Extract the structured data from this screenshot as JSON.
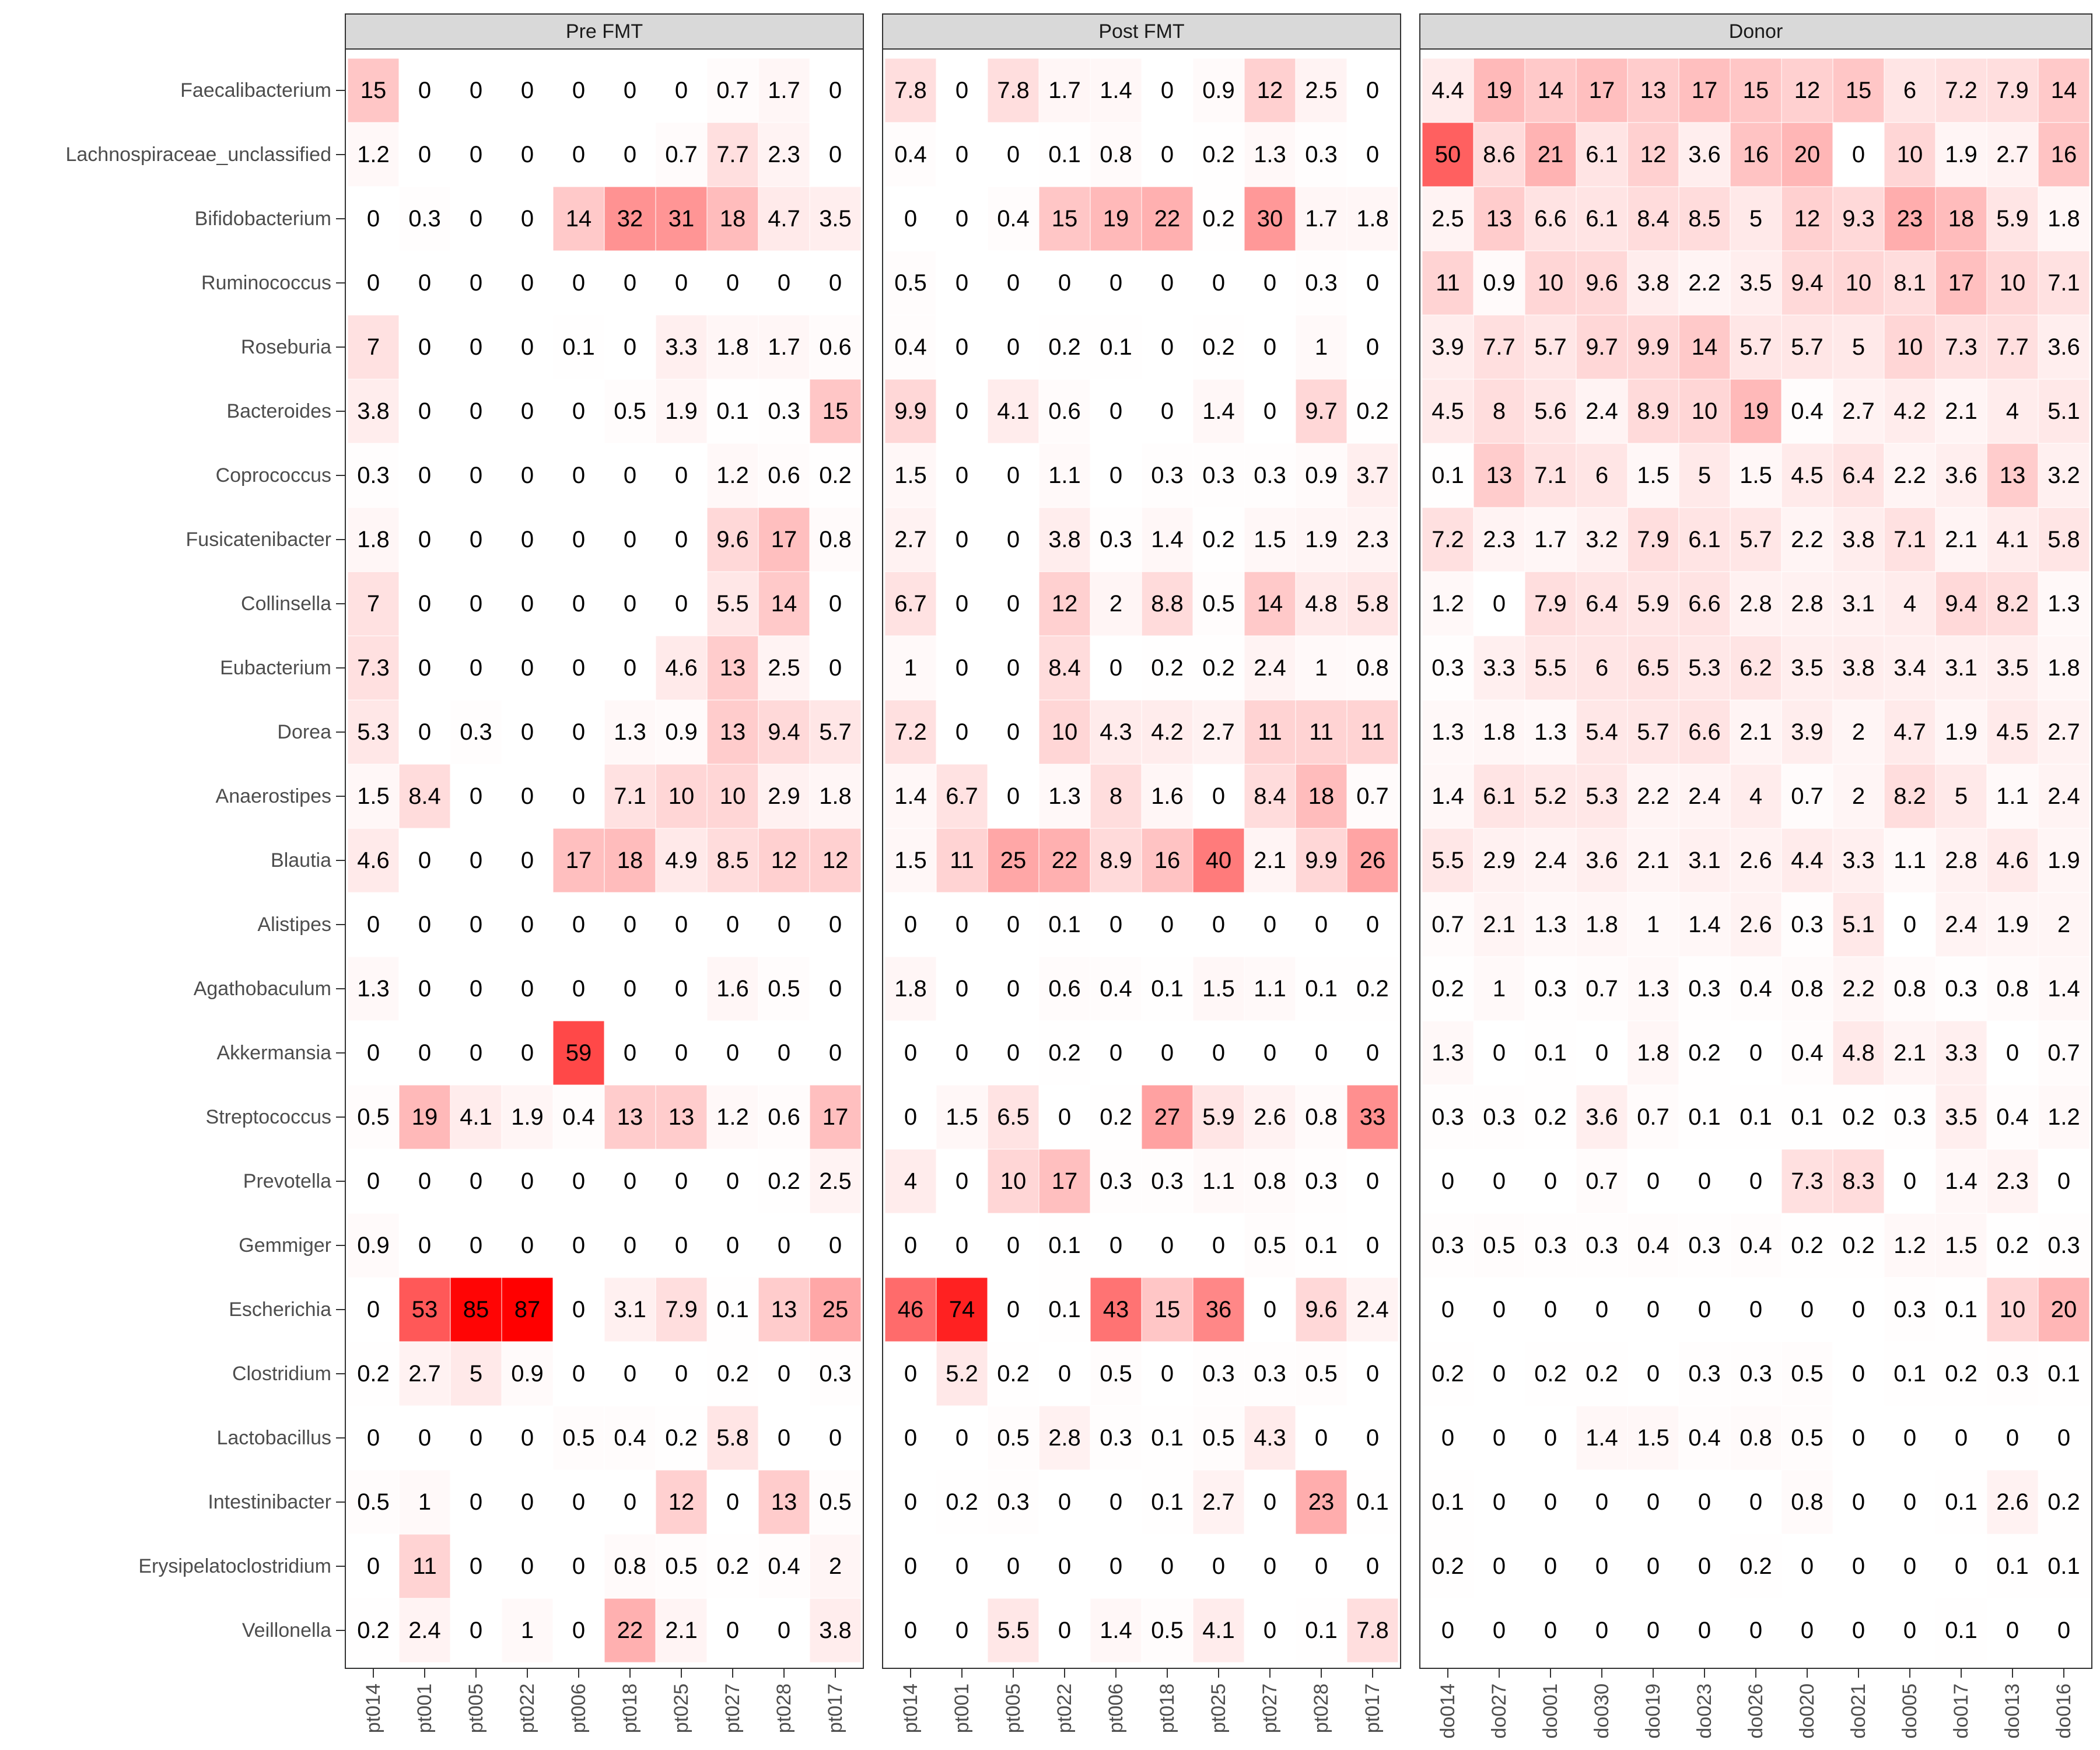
{
  "chart_data": {
    "type": "heatmap",
    "title": "",
    "xlabel": "",
    "ylabel": "",
    "color_low": "#ffffff",
    "color_high": "#ff0000",
    "value_max": 87,
    "rows": [
      "Faecalibacterium",
      "Lachnospiraceae_unclassified",
      "Bifidobacterium",
      "Ruminococcus",
      "Roseburia",
      "Bacteroides",
      "Coprococcus",
      "Fusicatenibacter",
      "Collinsella",
      "Eubacterium",
      "Dorea",
      "Anaerostipes",
      "Blautia",
      "Alistipes",
      "Agathobaculum",
      "Akkermansia",
      "Streptococcus",
      "Prevotella",
      "Gemmiger",
      "Escherichia",
      "Clostridium",
      "Lactobacillus",
      "Intestinibacter",
      "Erysipelatoclostridium",
      "Veillonella"
    ],
    "panels": [
      {
        "title": "Pre FMT",
        "columns": [
          "pt014",
          "pt001",
          "pt005",
          "pt022",
          "pt006",
          "pt018",
          "pt025",
          "pt027",
          "pt028",
          "pt017"
        ],
        "values": [
          [
            15,
            0,
            0,
            0,
            0,
            0,
            0,
            0.7,
            1.7,
            0
          ],
          [
            1.2,
            0,
            0,
            0,
            0,
            0,
            0.7,
            7.7,
            2.3,
            0
          ],
          [
            0,
            0.3,
            0,
            0,
            14,
            32,
            31,
            18,
            4.7,
            3.5
          ],
          [
            0,
            0,
            0,
            0,
            0,
            0,
            0,
            0,
            0,
            0
          ],
          [
            7,
            0,
            0,
            0,
            0.1,
            0,
            3.3,
            1.8,
            1.7,
            0.6
          ],
          [
            3.8,
            0,
            0,
            0,
            0,
            0.5,
            1.9,
            0.1,
            0.3,
            15
          ],
          [
            0.3,
            0,
            0,
            0,
            0,
            0,
            0,
            1.2,
            0.6,
            0.2
          ],
          [
            1.8,
            0,
            0,
            0,
            0,
            0,
            0,
            9.6,
            17,
            0.8
          ],
          [
            7,
            0,
            0,
            0,
            0,
            0,
            0,
            5.5,
            14,
            0
          ],
          [
            7.3,
            0,
            0,
            0,
            0,
            0,
            4.6,
            13,
            2.5,
            0
          ],
          [
            5.3,
            0,
            0.3,
            0,
            0,
            1.3,
            0.9,
            13,
            9.4,
            5.7
          ],
          [
            1.5,
            8.4,
            0,
            0,
            0,
            7.1,
            10,
            10,
            2.9,
            1.8
          ],
          [
            4.6,
            0,
            0,
            0,
            17,
            18,
            4.9,
            8.5,
            12,
            12
          ],
          [
            0,
            0,
            0,
            0,
            0,
            0,
            0,
            0,
            0,
            0
          ],
          [
            1.3,
            0,
            0,
            0,
            0,
            0,
            0,
            1.6,
            0.5,
            0
          ],
          [
            0,
            0,
            0,
            0,
            59,
            0,
            0,
            0,
            0,
            0
          ],
          [
            0.5,
            19,
            4.1,
            1.9,
            0.4,
            13,
            13,
            1.2,
            0.6,
            17
          ],
          [
            0,
            0,
            0,
            0,
            0,
            0,
            0,
            0,
            0.2,
            2.5
          ],
          [
            0.9,
            0,
            0,
            0,
            0,
            0,
            0,
            0,
            0,
            0
          ],
          [
            0,
            53,
            85,
            87,
            0,
            3.1,
            7.9,
            0.1,
            13,
            25
          ],
          [
            0.2,
            2.7,
            5,
            0.9,
            0,
            0,
            0,
            0.2,
            0,
            0.3
          ],
          [
            0,
            0,
            0,
            0,
            0.5,
            0.4,
            0.2,
            5.8,
            0,
            0
          ],
          [
            0.5,
            1,
            0,
            0,
            0,
            0,
            12,
            0,
            13,
            0.5
          ],
          [
            0,
            11,
            0,
            0,
            0,
            0.8,
            0.5,
            0.2,
            0.4,
            2
          ],
          [
            0.2,
            2.4,
            0,
            1,
            0,
            22,
            2.1,
            0,
            0,
            3.8
          ]
        ]
      },
      {
        "title": "Post FMT",
        "columns": [
          "pt014",
          "pt001",
          "pt005",
          "pt022",
          "pt006",
          "pt018",
          "pt025",
          "pt027",
          "pt028",
          "pt017"
        ],
        "values": [
          [
            7.8,
            0,
            7.8,
            1.7,
            1.4,
            0,
            0.9,
            12,
            2.5,
            0
          ],
          [
            0.4,
            0,
            0,
            0.1,
            0.8,
            0,
            0.2,
            1.3,
            0.3,
            0
          ],
          [
            0,
            0,
            0.4,
            15,
            19,
            22,
            0.2,
            30,
            1.7,
            1.8
          ],
          [
            0.5,
            0,
            0,
            0,
            0,
            0,
            0,
            0,
            0.3,
            0
          ],
          [
            0.4,
            0,
            0,
            0.2,
            0.1,
            0,
            0.2,
            0,
            1,
            0
          ],
          [
            9.9,
            0,
            4.1,
            0.6,
            0,
            0,
            1.4,
            0,
            9.7,
            0.2
          ],
          [
            1.5,
            0,
            0,
            1.1,
            0,
            0.3,
            0.3,
            0.3,
            0.9,
            3.7
          ],
          [
            2.7,
            0,
            0,
            3.8,
            0.3,
            1.4,
            0.2,
            1.5,
            1.9,
            2.3
          ],
          [
            6.7,
            0,
            0,
            12,
            2,
            8.8,
            0.5,
            14,
            4.8,
            5.8
          ],
          [
            1,
            0,
            0,
            8.4,
            0,
            0.2,
            0.2,
            2.4,
            1,
            0.8
          ],
          [
            7.2,
            0,
            0,
            10,
            4.3,
            4.2,
            2.7,
            11,
            11,
            11
          ],
          [
            1.4,
            6.7,
            0,
            1.3,
            8,
            1.6,
            0,
            8.4,
            18,
            0.7
          ],
          [
            1.5,
            11,
            25,
            22,
            8.9,
            16,
            40,
            2.1,
            9.9,
            26
          ],
          [
            0,
            0,
            0,
            0.1,
            0,
            0,
            0,
            0,
            0,
            0
          ],
          [
            1.8,
            0,
            0,
            0.6,
            0.4,
            0.1,
            1.5,
            1.1,
            0.1,
            0.2
          ],
          [
            0,
            0,
            0,
            0.2,
            0,
            0,
            0,
            0,
            0,
            0
          ],
          [
            0,
            1.5,
            6.5,
            0,
            0.2,
            27,
            5.9,
            2.6,
            0.8,
            33
          ],
          [
            4,
            0,
            10,
            17,
            0.3,
            0.3,
            1.1,
            0.8,
            0.3,
            0
          ],
          [
            0,
            0,
            0,
            0.1,
            0,
            0,
            0,
            0.5,
            0.1,
            0
          ],
          [
            46,
            74,
            0,
            0.1,
            43,
            15,
            36,
            0,
            9.6,
            2.4
          ],
          [
            0,
            5.2,
            0.2,
            0,
            0.5,
            0,
            0.3,
            0.3,
            0.5,
            0
          ],
          [
            0,
            0,
            0.5,
            2.8,
            0.3,
            0.1,
            0.5,
            4.3,
            0,
            0
          ],
          [
            0,
            0.2,
            0.3,
            0,
            0,
            0.1,
            2.7,
            0,
            23,
            0.1
          ],
          [
            0,
            0,
            0,
            0,
            0,
            0,
            0,
            0,
            0,
            0
          ],
          [
            0,
            0,
            5.5,
            0,
            1.4,
            0.5,
            4.1,
            0,
            0.1,
            7.8
          ]
        ]
      },
      {
        "title": "Donor",
        "columns": [
          "do014",
          "do027",
          "do001",
          "do030",
          "do019",
          "do023",
          "do026",
          "do020",
          "do021",
          "do005",
          "do017",
          "do013",
          "do016"
        ],
        "values": [
          [
            4.4,
            19,
            14,
            17,
            13,
            17,
            15,
            12,
            15,
            6,
            7.2,
            7.9,
            14
          ],
          [
            50,
            8.6,
            21,
            6.1,
            12,
            3.6,
            16,
            20,
            0,
            10,
            1.9,
            2.7,
            16
          ],
          [
            2.5,
            13,
            6.6,
            6.1,
            8.4,
            8.5,
            5,
            12,
            9.3,
            23,
            18,
            5.9,
            1.8
          ],
          [
            11,
            0.9,
            10,
            9.6,
            3.8,
            2.2,
            3.5,
            9.4,
            10,
            8.1,
            17,
            10,
            7.1
          ],
          [
            3.9,
            7.7,
            5.7,
            9.7,
            9.9,
            14,
            5.7,
            5.7,
            5,
            10,
            7.3,
            7.7,
            3.6
          ],
          [
            4.5,
            8,
            5.6,
            2.4,
            8.9,
            10,
            19,
            0.4,
            2.7,
            4.2,
            2.1,
            4,
            5.1
          ],
          [
            0.1,
            13,
            7.1,
            6,
            1.5,
            5,
            1.5,
            4.5,
            6.4,
            2.2,
            3.6,
            13,
            3.2
          ],
          [
            7.2,
            2.3,
            1.7,
            3.2,
            7.9,
            6.1,
            5.7,
            2.2,
            3.8,
            7.1,
            2.1,
            4.1,
            5.8
          ],
          [
            1.2,
            0,
            7.9,
            6.4,
            5.9,
            6.6,
            2.8,
            2.8,
            3.1,
            4,
            9.4,
            8.2,
            1.3
          ],
          [
            0.3,
            3.3,
            5.5,
            6,
            6.5,
            5.3,
            6.2,
            3.5,
            3.8,
            3.4,
            3.1,
            3.5,
            1.8
          ],
          [
            1.3,
            1.8,
            1.3,
            5.4,
            5.7,
            6.6,
            2.1,
            3.9,
            2,
            4.7,
            1.9,
            4.5,
            2.7
          ],
          [
            1.4,
            6.1,
            5.2,
            5.3,
            2.2,
            2.4,
            4,
            0.7,
            2,
            8.2,
            5,
            1.1,
            2.4
          ],
          [
            5.5,
            2.9,
            2.4,
            3.6,
            2.1,
            3.1,
            2.6,
            4.4,
            3.3,
            1.1,
            2.8,
            4.6,
            1.9
          ],
          [
            0.7,
            2.1,
            1.3,
            1.8,
            1,
            1.4,
            2.6,
            0.3,
            5.1,
            0,
            2.4,
            1.9,
            2
          ],
          [
            0.2,
            1,
            0.3,
            0.7,
            1.3,
            0.3,
            0.4,
            0.8,
            2.2,
            0.8,
            0.3,
            0.8,
            1.4
          ],
          [
            1.3,
            0,
            0.1,
            0,
            1.8,
            0.2,
            0,
            0.4,
            4.8,
            2.1,
            3.3,
            0,
            0.7
          ],
          [
            0.3,
            0.3,
            0.2,
            3.6,
            0.7,
            0.1,
            0.1,
            0.1,
            0.2,
            0.3,
            3.5,
            0.4,
            1.2
          ],
          [
            0,
            0,
            0,
            0.7,
            0,
            0,
            0,
            7.3,
            8.3,
            0,
            1.4,
            2.3,
            0
          ],
          [
            0.3,
            0.5,
            0.3,
            0.3,
            0.4,
            0.3,
            0.4,
            0.2,
            0.2,
            1.2,
            1.5,
            0.2,
            0.3
          ],
          [
            0,
            0,
            0,
            0,
            0,
            0,
            0,
            0,
            0,
            0.3,
            0.1,
            10,
            20
          ],
          [
            0.2,
            0,
            0.2,
            0.2,
            0,
            0.3,
            0.3,
            0.5,
            0,
            0.1,
            0.2,
            0.3,
            0.1
          ],
          [
            0,
            0,
            0,
            1.4,
            1.5,
            0.4,
            0.8,
            0.5,
            0,
            0,
            0,
            0,
            0
          ],
          [
            0.1,
            0,
            0,
            0,
            0,
            0,
            0,
            0.8,
            0,
            0,
            0.1,
            2.6,
            0.2
          ],
          [
            0.2,
            0,
            0,
            0,
            0,
            0,
            0.2,
            0,
            0,
            0,
            0,
            0.1,
            0.1
          ],
          [
            0,
            0,
            0,
            0,
            0,
            0,
            0,
            0,
            0,
            0,
            0.1,
            0,
            0
          ]
        ]
      }
    ],
    "legend": "none"
  }
}
